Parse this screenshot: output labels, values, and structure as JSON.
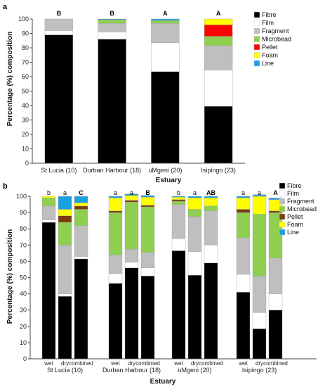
{
  "legend": [
    {
      "name": "Fibre",
      "color": "#000000"
    },
    {
      "name": "Film",
      "color": "#ffffff"
    },
    {
      "name": "Fragment",
      "color": "#bfbfbf"
    },
    {
      "name": "Microbead",
      "color": "#8fcf4f"
    },
    {
      "name": "Pellet",
      "color": "#ff0000"
    },
    {
      "name": "Foam",
      "color": "#ffff00"
    },
    {
      "name": "Line",
      "color": "#1aa0e0"
    }
  ],
  "legend_b_colors": [
    "#000000",
    "#ffffff",
    "#bfbfbf",
    "#8fcf4f",
    "#7a3a10",
    "#ffff00",
    "#1aa0e0"
  ],
  "chart_data": [
    {
      "type": "bar",
      "panel": "a",
      "stacked": true,
      "xlabel": "Estuary",
      "ylabel": "Percentage (%) composition",
      "ylim": [
        0,
        100
      ],
      "yticks": [
        0,
        10,
        20,
        30,
        40,
        50,
        60,
        70,
        80,
        90,
        100
      ],
      "categories": [
        "St Lucia (10)",
        "Durban Harbour (18)",
        "uMgeni (20)",
        "Isipingo (23)"
      ],
      "significance": [
        "B",
        "B",
        "A",
        "A"
      ],
      "series": [
        {
          "name": "Fibre",
          "values": [
            89,
            86,
            63.5,
            39.5
          ]
        },
        {
          "name": "Film",
          "values": [
            3,
            5,
            20,
            25
          ]
        },
        {
          "name": "Fragment",
          "values": [
            8,
            6,
            13.5,
            17
          ]
        },
        {
          "name": "Microbead",
          "values": [
            0,
            2.5,
            2,
            6.5
          ]
        },
        {
          "name": "Pellet",
          "values": [
            0,
            0,
            0,
            8
          ]
        },
        {
          "name": "Foam",
          "values": [
            0,
            0,
            0,
            4
          ]
        },
        {
          "name": "Line",
          "values": [
            0,
            0.5,
            1,
            0
          ]
        }
      ]
    },
    {
      "type": "bar",
      "panel": "b",
      "stacked": true,
      "xlabel": "Estuary",
      "ylabel": "Percentage (%) composition",
      "ylim": [
        0,
        100
      ],
      "yticks": [
        0,
        10,
        20,
        30,
        40,
        50,
        60,
        70,
        80,
        90,
        100
      ],
      "groups": [
        "St Lucia (10)",
        "Durban Harbour (18)",
        "uMgeni (20)",
        "Isipingo (23)"
      ],
      "subcategories": [
        "wet",
        "dry",
        "combined"
      ],
      "significance": [
        [
          "b",
          "a",
          "C"
        ],
        [
          "a",
          "a",
          "B"
        ],
        [
          "b",
          "a",
          "AB"
        ],
        [
          "a",
          "a",
          "A"
        ]
      ],
      "series": [
        {
          "name": "Fibre",
          "values": [
            [
              84,
              38.5,
              61.5
            ],
            [
              46.5,
              56,
              51
            ],
            [
              66.5,
              51.5,
              59
            ],
            [
              41,
              18.5,
              30
            ]
          ]
        },
        {
          "name": "Film",
          "values": [
            [
              1.5,
              1.5,
              1.5
            ],
            [
              6,
              3.5,
              5
            ],
            [
              7.5,
              14.5,
              11
            ],
            [
              11,
              10,
              10
            ]
          ]
        },
        {
          "name": "Fragment",
          "values": [
            [
              8.5,
              30,
              19
            ],
            [
              11.5,
              8,
              9.5
            ],
            [
              21,
              21.5,
              21
            ],
            [
              22.5,
              22.5,
              22
            ]
          ]
        },
        {
          "name": "Microbead",
          "values": [
            [
              5,
              14,
              10
            ],
            [
              26,
              29,
              28
            ],
            [
              2,
              4.5,
              3
            ],
            [
              15.5,
              38,
              28
            ]
          ]
        },
        {
          "name": "Pellet",
          "values": [
            [
              0,
              4,
              2
            ],
            [
              1,
              1,
              1
            ],
            [
              1,
              0,
              0
            ],
            [
              2,
              0,
              1
            ]
          ]
        },
        {
          "name": "Foam",
          "values": [
            [
              1,
              4,
              2
            ],
            [
              8,
              3,
              5
            ],
            [
              1.5,
              7,
              5
            ],
            [
              7,
              11,
              7
            ]
          ]
        },
        {
          "name": "Line",
          "values": [
            [
              0,
              8,
              4
            ],
            [
              1,
              1,
              1
            ],
            [
              0.5,
              1,
              1
            ],
            [
              1,
              1,
              1
            ]
          ]
        }
      ]
    }
  ]
}
